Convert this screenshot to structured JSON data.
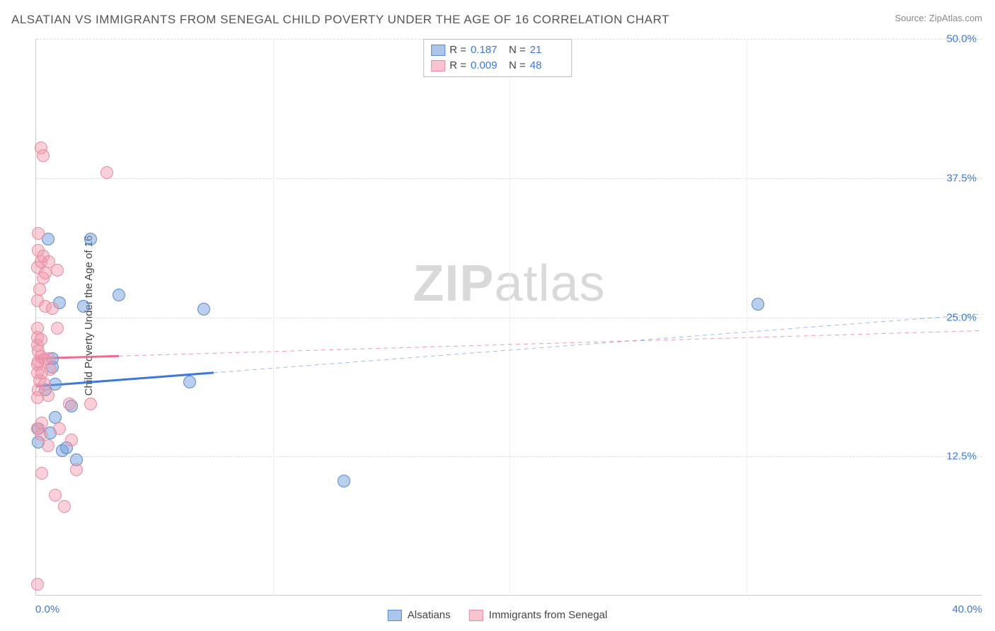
{
  "title": "ALSATIAN VS IMMIGRANTS FROM SENEGAL CHILD POVERTY UNDER THE AGE OF 16 CORRELATION CHART",
  "source": "Source: ZipAtlas.com",
  "watermark_bold": "ZIP",
  "watermark_light": "atlas",
  "y_label": "Child Poverty Under the Age of 16",
  "chart": {
    "type": "scatter",
    "xlim": [
      0,
      40
    ],
    "ylim": [
      0,
      50
    ],
    "x_ticks": [
      0,
      40
    ],
    "x_tick_labels": [
      "0.0%",
      "40.0%"
    ],
    "y_ticks": [
      12.5,
      25.0,
      37.5,
      50.0
    ],
    "y_tick_labels": [
      "12.5%",
      "25.0%",
      "37.5%",
      "50.0%"
    ],
    "v_gridlines": [
      25,
      50,
      75
    ],
    "background_color": "#ffffff",
    "grid_color": "#dddddd"
  },
  "stats": [
    {
      "color": "blue",
      "r_label": "R =",
      "r": "0.187",
      "n_label": "N =",
      "n": "21"
    },
    {
      "color": "pink",
      "r_label": "R =",
      "r": "0.009",
      "n_label": "N =",
      "n": "48"
    }
  ],
  "series": [
    {
      "name": "Alsatians",
      "label": "Alsatians",
      "color_fill": "#73a0dc",
      "color_stroke": "#5a8acb",
      "marker_size": 18,
      "trend": {
        "x1": 0,
        "y1": 18.8,
        "x2": 40,
        "y2": 25.3,
        "solid_until_x": 7.5
      },
      "points": [
        [
          0.1,
          13.8
        ],
        [
          0.1,
          15.0
        ],
        [
          0.4,
          18.5
        ],
        [
          0.5,
          32.0
        ],
        [
          0.6,
          14.6
        ],
        [
          0.7,
          20.5
        ],
        [
          0.7,
          21.3
        ],
        [
          0.8,
          16.0
        ],
        [
          0.8,
          19.0
        ],
        [
          1.0,
          26.3
        ],
        [
          1.1,
          13.0
        ],
        [
          1.3,
          13.3
        ],
        [
          1.5,
          17.0
        ],
        [
          1.7,
          12.2
        ],
        [
          2.0,
          26.0
        ],
        [
          2.3,
          32.0
        ],
        [
          3.5,
          27.0
        ],
        [
          6.5,
          19.2
        ],
        [
          7.1,
          25.7
        ],
        [
          13.0,
          10.3
        ],
        [
          30.5,
          26.2
        ]
      ]
    },
    {
      "name": "Immigrants from Senegal",
      "label": "Immigrants from Senegal",
      "color_fill": "#f096aa",
      "color_stroke": "#e88ba0",
      "marker_size": 18,
      "trend": {
        "x1": 0,
        "y1": 21.3,
        "x2": 40,
        "y2": 23.8,
        "solid_until_x": 3.5
      },
      "points": [
        [
          0.05,
          1.0
        ],
        [
          0.05,
          15.0
        ],
        [
          0.05,
          17.8
        ],
        [
          0.05,
          20.0
        ],
        [
          0.05,
          20.8
        ],
        [
          0.05,
          22.5
        ],
        [
          0.05,
          23.2
        ],
        [
          0.05,
          24.0
        ],
        [
          0.05,
          26.5
        ],
        [
          0.05,
          29.5
        ],
        [
          0.1,
          18.5
        ],
        [
          0.1,
          21.0
        ],
        [
          0.1,
          22.0
        ],
        [
          0.1,
          31.0
        ],
        [
          0.1,
          32.5
        ],
        [
          0.15,
          19.3
        ],
        [
          0.15,
          27.5
        ],
        [
          0.2,
          14.5
        ],
        [
          0.2,
          21.5
        ],
        [
          0.2,
          23.0
        ],
        [
          0.2,
          30.0
        ],
        [
          0.2,
          40.2
        ],
        [
          0.25,
          11.0
        ],
        [
          0.25,
          15.5
        ],
        [
          0.25,
          20.0
        ],
        [
          0.3,
          28.5
        ],
        [
          0.3,
          30.5
        ],
        [
          0.3,
          39.5
        ],
        [
          0.35,
          19.0
        ],
        [
          0.35,
          21.2
        ],
        [
          0.4,
          26.0
        ],
        [
          0.4,
          29.0
        ],
        [
          0.5,
          13.5
        ],
        [
          0.5,
          18.0
        ],
        [
          0.55,
          21.3
        ],
        [
          0.55,
          30.0
        ],
        [
          0.6,
          20.3
        ],
        [
          0.7,
          25.8
        ],
        [
          0.8,
          9.0
        ],
        [
          0.9,
          24.0
        ],
        [
          0.9,
          29.2
        ],
        [
          1.0,
          15.0
        ],
        [
          1.2,
          8.0
        ],
        [
          1.4,
          17.2
        ],
        [
          1.5,
          14.0
        ],
        [
          1.7,
          11.3
        ],
        [
          2.3,
          17.2
        ],
        [
          3.0,
          38.0
        ]
      ]
    }
  ],
  "legend_bottom": [
    {
      "swatch": "blue",
      "label": "Alsatians"
    },
    {
      "swatch": "pink",
      "label": "Immigrants from Senegal"
    }
  ]
}
